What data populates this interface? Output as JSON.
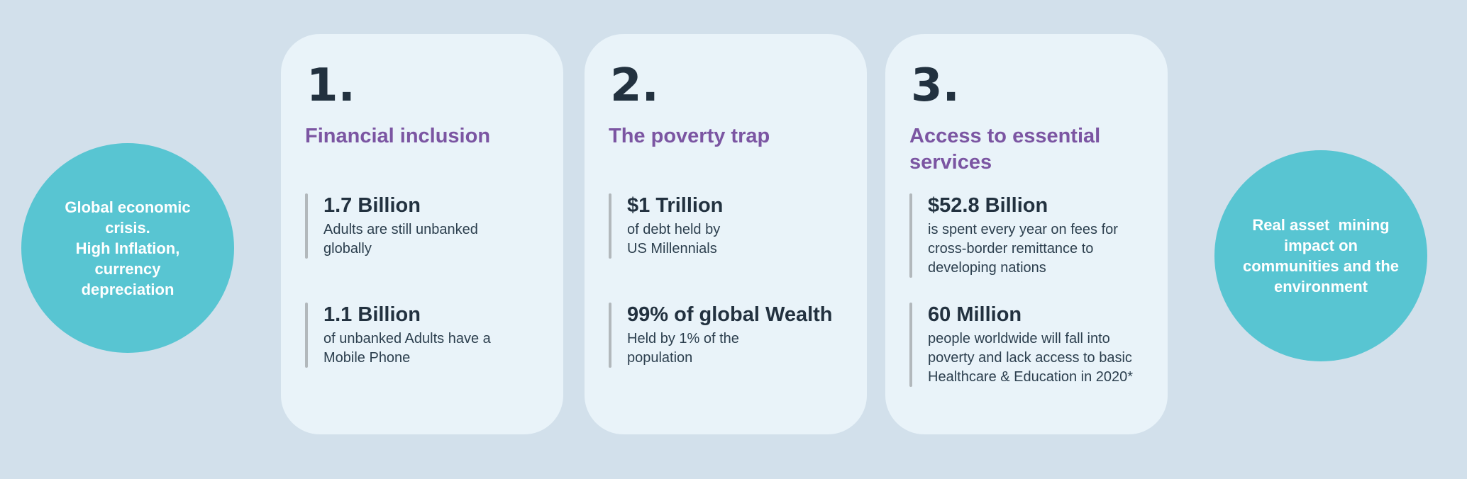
{
  "colors": {
    "background": "#d2e0eb",
    "card_background": "#e9f3f9",
    "circle_teal": "#58c5d2",
    "circle_text": "#ffffff",
    "heading_purple": "#7b55a2",
    "text_dark": "#22313f",
    "stat_bar_gray": "#b2b8bc"
  },
  "left_circle": {
    "lines": [
      "Global economic",
      "crisis.",
      "High Inflation,",
      "currency",
      "depreciation"
    ]
  },
  "right_circle": {
    "lines": [
      "Real asset  mining",
      "impact on",
      "communities and the",
      "environment"
    ]
  },
  "cards": [
    {
      "number": "1.",
      "title": "Financial inclusion",
      "stats": [
        {
          "value": "1.7 Billion",
          "description": "Adults are still unbanked\nglobally"
        },
        {
          "value": "1.1 Billion",
          "description": "of unbanked Adults have a\nMobile Phone"
        }
      ]
    },
    {
      "number": "2.",
      "title": "The poverty trap",
      "stats": [
        {
          "value": "$1 Trillion",
          "description": "of debt held by\nUS Millennials"
        },
        {
          "value": "99% of global Wealth",
          "description": "Held by 1% of the\npopulation"
        }
      ]
    },
    {
      "number": "3.",
      "title": "Access to essential services",
      "stats": [
        {
          "value": "$52.8 Billion",
          "description": "is spent every year on fees for\ncross-border remittance to\ndeveloping nations"
        },
        {
          "value": "60 Million",
          "description": "people worldwide will fall into\npoverty and lack access to basic\nHealthcare & Education in 2020*"
        }
      ]
    }
  ]
}
